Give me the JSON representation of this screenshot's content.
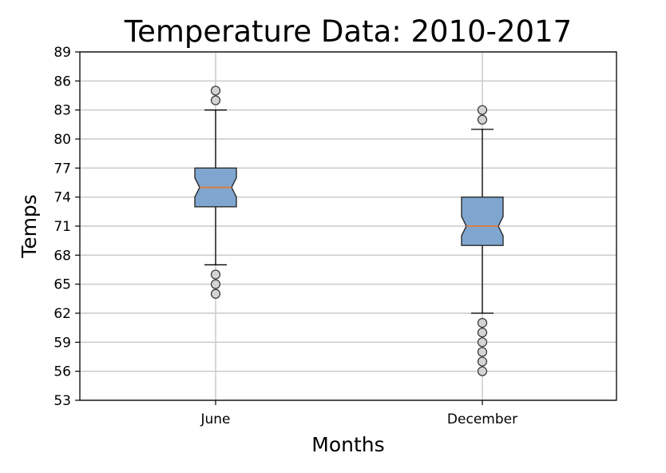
{
  "chart_data": {
    "type": "box",
    "title": "Temperature Data: 2010-2017",
    "xlabel": "Months",
    "ylabel": "Temps",
    "categories": [
      "June",
      "December"
    ],
    "ylim": [
      53,
      89
    ],
    "yticks": [
      53,
      56,
      59,
      62,
      65,
      68,
      71,
      74,
      77,
      80,
      83,
      86,
      89
    ],
    "grid": true,
    "notched": true,
    "box_color": "#7fa6cf",
    "median_color": "#e07b39",
    "series": [
      {
        "category": "June",
        "whisker_low": 67,
        "q1": 73,
        "median": 75,
        "q3": 77,
        "whisker_high": 83,
        "outliers": [
          64,
          65,
          66,
          84,
          85
        ]
      },
      {
        "category": "December",
        "whisker_low": 62,
        "q1": 69,
        "median": 71,
        "q3": 74,
        "whisker_high": 81,
        "outliers": [
          56,
          57,
          58,
          59,
          60,
          61,
          82,
          83
        ]
      }
    ]
  }
}
